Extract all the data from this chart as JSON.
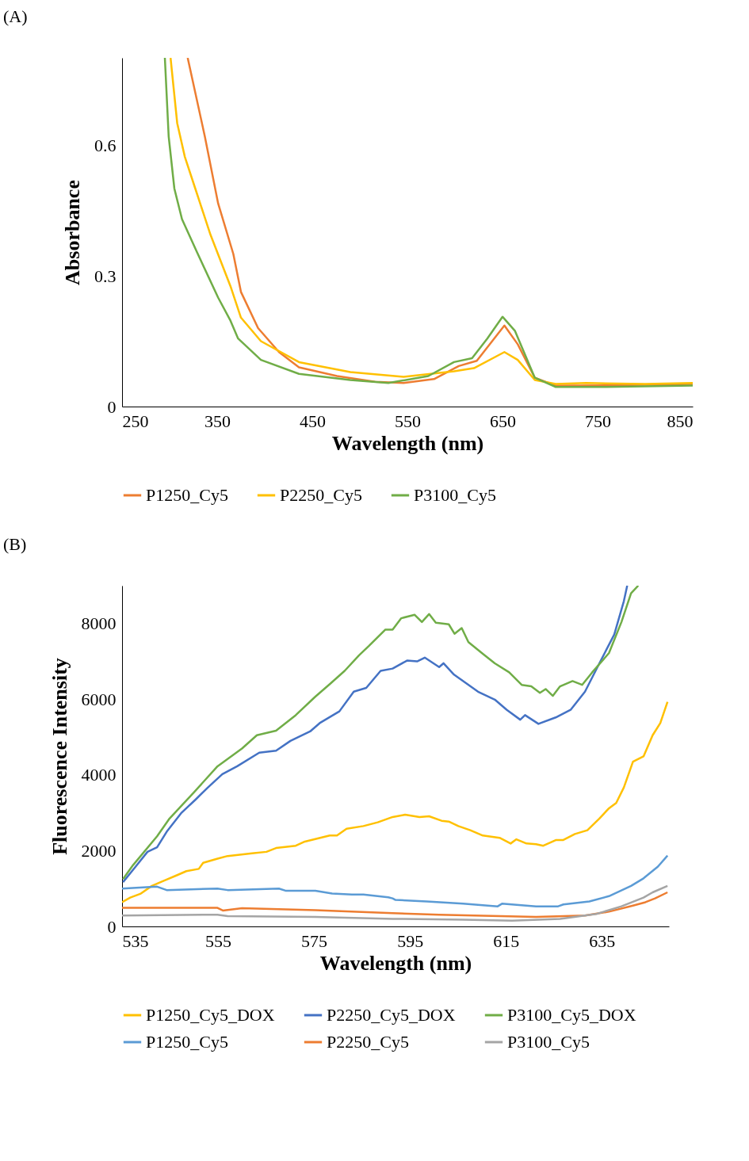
{
  "chart_data": [
    {
      "type": "line",
      "title": "(A)",
      "xlabel": "Wavelength (nm)",
      "ylabel": "Absorbance",
      "xlim": [
        250,
        850
      ],
      "xticks": [
        250,
        350,
        450,
        550,
        650,
        750,
        850
      ],
      "ylim": [
        0,
        0.8
      ],
      "yticks": [
        0,
        0.3,
        0.6
      ],
      "legend": "bottom",
      "series": [
        {
          "name": "P1250_Cy5",
          "color": "#ed7d31",
          "x": [
            319,
            337,
            351,
            367,
            375,
            393,
            415,
            436,
            476,
            516,
            546,
            578,
            604,
            623,
            652,
            666,
            684,
            706,
            732,
            800,
            850
          ],
          "values": [
            0.8,
            0.62,
            0.466,
            0.35,
            0.263,
            0.18,
            0.125,
            0.09,
            0.07,
            0.057,
            0.054,
            0.063,
            0.093,
            0.105,
            0.186,
            0.143,
            0.066,
            0.048,
            0.048,
            0.05,
            0.052
          ]
        },
        {
          "name": "P2250_Cy5",
          "color": "#ffc000",
          "x": [
            301,
            308,
            316,
            327,
            343,
            364,
            375,
            396,
            436,
            490,
            546,
            599,
            620,
            652,
            666,
            684,
            706,
            738,
            800,
            850
          ],
          "values": [
            0.8,
            0.65,
            0.573,
            0.5,
            0.394,
            0.276,
            0.204,
            0.15,
            0.102,
            0.079,
            0.068,
            0.081,
            0.088,
            0.125,
            0.107,
            0.061,
            0.052,
            0.054,
            0.052,
            0.054
          ]
        },
        {
          "name": "P3100_Cy5",
          "color": "#70ad47",
          "x": [
            295,
            299,
            305,
            313,
            329,
            351,
            364,
            372,
            396,
            436,
            490,
            530,
            572,
            599,
            618,
            634,
            650,
            663,
            684,
            706,
            759,
            850
          ],
          "values": [
            0.8,
            0.62,
            0.5,
            0.43,
            0.353,
            0.25,
            0.197,
            0.156,
            0.107,
            0.075,
            0.061,
            0.054,
            0.07,
            0.102,
            0.111,
            0.156,
            0.206,
            0.174,
            0.066,
            0.045,
            0.045,
            0.048
          ]
        }
      ]
    },
    {
      "type": "line",
      "title": "(B)",
      "xlabel": "Wavelength (nm)",
      "ylabel": "Fluorescence Intensity",
      "xlim": [
        535,
        649
      ],
      "xticks": [
        535,
        555,
        575,
        595,
        615,
        635
      ],
      "ylim": [
        0,
        9000
      ],
      "yticks": [
        0,
        2000,
        4000,
        6000,
        8000
      ],
      "legend": "bottom",
      "series": [
        {
          "name": "P1250_Cy5_DOX",
          "color": "#ffc000",
          "x": [
            535,
            536.7,
            538.8,
            541.2,
            543.8,
            546.4,
            548.4,
            551,
            551.9,
            554.9,
            557,
            562.1,
            565.1,
            567.1,
            571.2,
            573.1,
            578.3,
            579.8,
            581.8,
            585.3,
            588.3,
            591.4,
            594,
            597,
            599,
            601.6,
            603.1,
            605.1,
            607.6,
            610.2,
            613.7,
            616,
            617.2,
            619.3,
            621.3,
            622.8,
            625.4,
            626.9,
            629.4,
            632,
            634.5,
            636.5,
            638,
            639.6,
            641.5,
            643.7,
            645.6,
            647.2,
            648.7
          ],
          "values": [
            640,
            760,
            860,
            1070,
            1210,
            1350,
            1460,
            1520,
            1680,
            1790,
            1860,
            1930,
            1970,
            2070,
            2130,
            2240,
            2400,
            2400,
            2580,
            2650,
            2750,
            2890,
            2950,
            2890,
            2910,
            2790,
            2770,
            2650,
            2540,
            2400,
            2340,
            2190,
            2300,
            2190,
            2170,
            2130,
            2280,
            2280,
            2440,
            2540,
            2850,
            3120,
            3260,
            3670,
            4350,
            4490,
            5050,
            5370,
            5930
          ]
        },
        {
          "name": "P2250_Cy5_DOX",
          "color": "#4472c4",
          "x": [
            535.2,
            537.7,
            540.3,
            542.3,
            544.3,
            547.3,
            550.4,
            552.9,
            555.9,
            559,
            563.6,
            567.1,
            570.1,
            574.2,
            576.2,
            580.3,
            583.3,
            585.9,
            588.9,
            591.4,
            594.4,
            596.5,
            598.1,
            601.1,
            602,
            604.2,
            609.2,
            612.7,
            615.2,
            618,
            619,
            621.8,
            625.4,
            628.5,
            631.5,
            634.5,
            637.6,
            639.6,
            640.3
          ],
          "values": [
            1170,
            1560,
            1970,
            2090,
            2500,
            2990,
            3360,
            3670,
            4020,
            4230,
            4590,
            4640,
            4900,
            5150,
            5370,
            5680,
            6200,
            6300,
            6750,
            6810,
            7020,
            7000,
            7100,
            6850,
            6950,
            6650,
            6200,
            5990,
            5720,
            5460,
            5580,
            5350,
            5520,
            5720,
            6200,
            6950,
            7710,
            8590,
            9000
          ]
        },
        {
          "name": "P3100_Cy5_DOX",
          "color": "#70ad47",
          "x": [
            535.2,
            537.3,
            542.3,
            544.9,
            549.9,
            554.9,
            560,
            563.1,
            567.1,
            571.2,
            575.3,
            578.3,
            581.4,
            584.4,
            586.4,
            589.9,
            591.4,
            593.2,
            596,
            597.5,
            599,
            600.4,
            603.1,
            604.3,
            605.8,
            607.2,
            610.2,
            612.7,
            615.7,
            618.3,
            620.3,
            622.1,
            623.3,
            624.8,
            626.3,
            628.9,
            630.9,
            633,
            636.5,
            639.1,
            641.1,
            642.6
          ],
          "values": [
            1250,
            1620,
            2380,
            2850,
            3530,
            4230,
            4700,
            5050,
            5170,
            5580,
            6070,
            6400,
            6750,
            7160,
            7400,
            7840,
            7840,
            8140,
            8230,
            8040,
            8250,
            8020,
            7980,
            7730,
            7880,
            7510,
            7200,
            6950,
            6710,
            6380,
            6340,
            6170,
            6270,
            6090,
            6340,
            6480,
            6380,
            6710,
            7220,
            8040,
            8800,
            9000
          ]
        },
        {
          "name": "P1250_Cy5",
          "color": "#5b9bd5",
          "x": [
            535,
            542.3,
            544.3,
            554.9,
            557,
            567.7,
            569.2,
            575.3,
            578.8,
            582.9,
            585.3,
            590.5,
            591.4,
            592,
            598.5,
            606.1,
            613.3,
            614.2,
            621.3,
            625.9,
            627,
            632.4,
            636.5,
            641.1,
            643.7,
            646.7,
            648.7
          ],
          "values": [
            1000,
            1050,
            960,
            1000,
            960,
            1000,
            940,
            940,
            870,
            840,
            840,
            770,
            740,
            700,
            660,
            600,
            530,
            600,
            530,
            530,
            580,
            660,
            800,
            1070,
            1270,
            1580,
            1870
          ]
        },
        {
          "name": "P2250_Cy5",
          "color": "#ed7d31",
          "x": [
            535,
            554.9,
            556,
            560,
            575.3,
            591.4,
            601.1,
            621.3,
            631.5,
            636.5,
            641.5,
            644.1,
            646.1,
            648.7
          ],
          "values": [
            490,
            490,
            420,
            480,
            430,
            350,
            310,
            250,
            290,
            390,
            550,
            640,
            740,
            900
          ]
        },
        {
          "name": "P3100_Cy5",
          "color": "#a5a5a5",
          "x": [
            535,
            554.9,
            557,
            575.3,
            591.4,
            606.1,
            616.3,
            626.3,
            633.9,
            639.1,
            643.7,
            645.6,
            648.7
          ],
          "values": [
            290,
            310,
            270,
            250,
            200,
            180,
            150,
            200,
            330,
            530,
            760,
            900,
            1070
          ]
        }
      ]
    }
  ]
}
